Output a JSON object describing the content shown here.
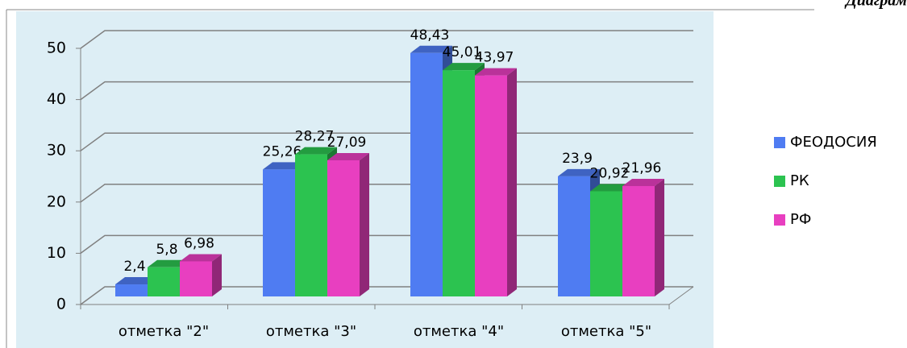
{
  "chart_data": {
    "type": "bar3d",
    "title": "Диаграм",
    "categories": [
      "отметка \"2\"",
      "отметка \"3\"",
      "отметка \"4\"",
      "отметка \"5\""
    ],
    "series": [
      {
        "name": "ФЕОДОСИЯ",
        "color": "#4f7cf2",
        "values": [
          2.4,
          25.26,
          48.43,
          23.9
        ],
        "value_labels": [
          "2,4",
          "25,26",
          "48,43",
          "23,9"
        ]
      },
      {
        "name": "РК",
        "color": "#2cc350",
        "values": [
          5.8,
          28.27,
          45.01,
          20.92
        ],
        "value_labels": [
          "5,8",
          "28,27",
          "45,01",
          "20,92"
        ]
      },
      {
        "name": "РФ",
        "color": "#e83fc0",
        "values": [
          6.98,
          27.09,
          43.97,
          21.96
        ],
        "value_labels": [
          "6,98",
          "27,09",
          "43,97",
          "21,96"
        ]
      }
    ],
    "ylim": [
      0,
      50
    ],
    "yticks": [
      0,
      10,
      20,
      30,
      40,
      50
    ],
    "grid": true,
    "legend": "right"
  }
}
